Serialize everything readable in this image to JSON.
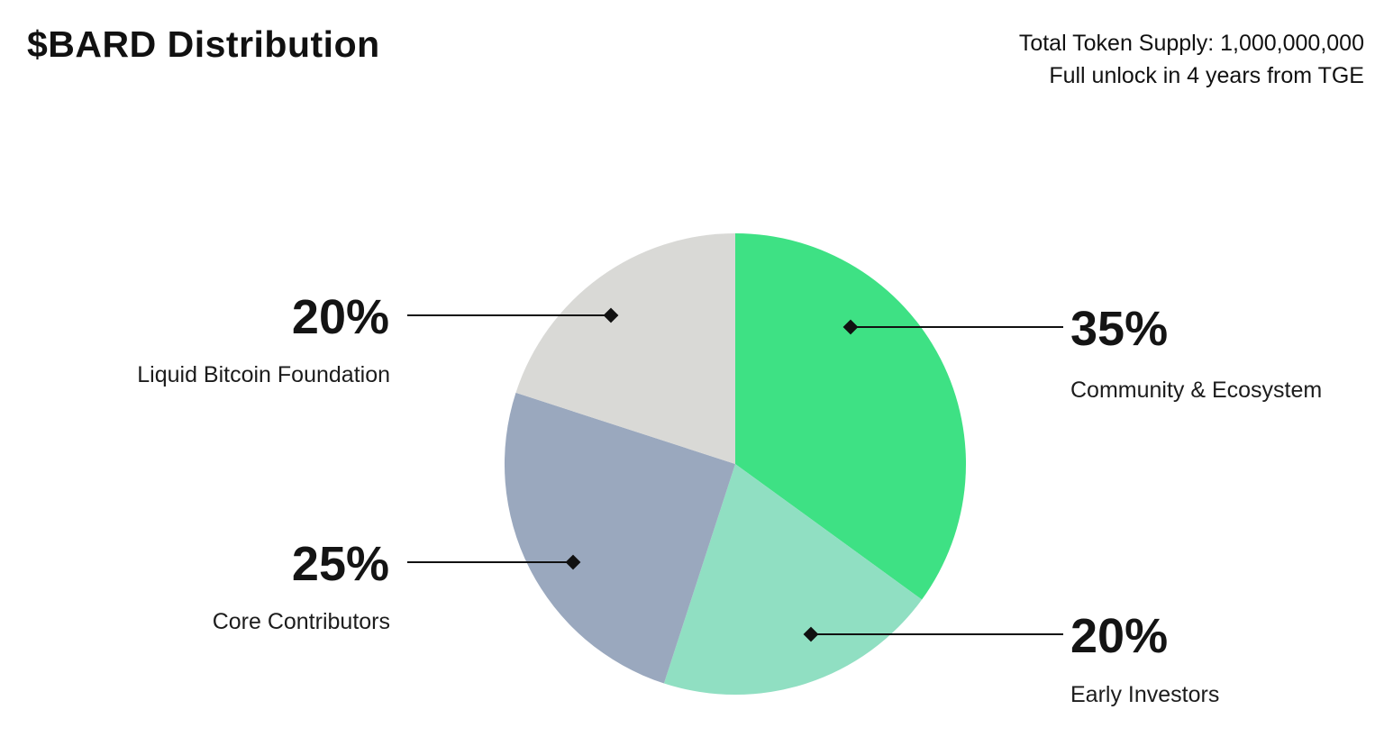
{
  "header": {
    "title": "$BARD Distribution",
    "supply_line1": "Total Token Supply: 1,000,000,000",
    "supply_line2": "Full unlock in 4 years from TGE"
  },
  "chart_data": {
    "type": "pie",
    "title": "$BARD Distribution",
    "start_angle_deg": 0,
    "direction": "clockwise",
    "annotations": [
      "Total Token Supply: 1,000,000,000",
      "Full unlock in 4 years from TGE"
    ],
    "slices": [
      {
        "label": "Community & Ecosystem",
        "value": 35,
        "pct_label": "35%",
        "color": "#3ee184"
      },
      {
        "label": "Early Investors",
        "value": 20,
        "pct_label": "20%",
        "color": "#90dfc2"
      },
      {
        "label": "Core Contributors",
        "value": 25,
        "pct_label": "25%",
        "color": "#9aa8be"
      },
      {
        "label": "Liquid Bitcoin Foundation",
        "value": 20,
        "pct_label": "20%",
        "color": "#d9d9d6"
      }
    ]
  }
}
